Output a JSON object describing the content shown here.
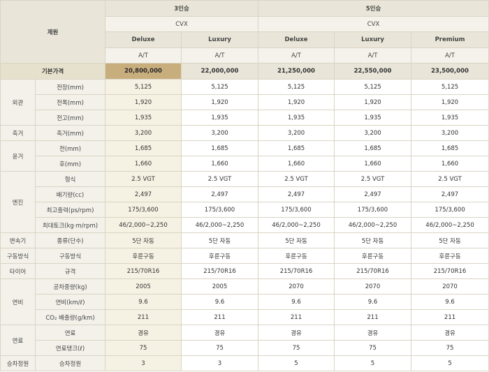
{
  "header": {
    "spec_label": "제원",
    "groups": [
      {
        "label": "3인승",
        "model": "CVX"
      },
      {
        "label": "5인승",
        "model": "CVX"
      }
    ],
    "trims": [
      "Deluxe",
      "Luxury",
      "Deluxe",
      "Luxury",
      "Premium"
    ],
    "transmissions": [
      "A/T",
      "A/T",
      "A/T",
      "A/T",
      "A/T"
    ]
  },
  "base_price": {
    "label": "기본가격",
    "values": [
      "20,800,000",
      "22,000,000",
      "21,250,000",
      "22,550,000",
      "23,500,000"
    ]
  },
  "categories": [
    {
      "name": "외관",
      "rows": [
        {
          "label": "전장(mm)",
          "values": [
            "5,125",
            "5,125",
            "5,125",
            "5,125",
            "5,125"
          ]
        },
        {
          "label": "전폭(mm)",
          "values": [
            "1,920",
            "1,920",
            "1,920",
            "1,920",
            "1,920"
          ]
        },
        {
          "label": "전고(mm)",
          "values": [
            "1,935",
            "1,935",
            "1,935",
            "1,935",
            "1,935"
          ]
        }
      ]
    },
    {
      "name": "축거",
      "rows": [
        {
          "label": "축거(mm)",
          "values": [
            "3,200",
            "3,200",
            "3,200",
            "3,200",
            "3,200"
          ]
        }
      ]
    },
    {
      "name": "윤거",
      "rows": [
        {
          "label": "전(mm)",
          "values": [
            "1,685",
            "1,685",
            "1,685",
            "1,685",
            "1,685"
          ]
        },
        {
          "label": "후(mm)",
          "values": [
            "1,660",
            "1,660",
            "1,660",
            "1,660",
            "1,660"
          ]
        }
      ]
    },
    {
      "name": "엔진",
      "rows": [
        {
          "label": "형식",
          "values": [
            "2.5 VGT",
            "2.5 VGT",
            "2.5 VGT",
            "2.5 VGT",
            "2.5 VGT"
          ]
        },
        {
          "label": "배기량(cc)",
          "values": [
            "2,497",
            "2,497",
            "2,497",
            "2,497",
            "2,497"
          ]
        },
        {
          "label": "최고출력(ps/rpm)",
          "values": [
            "175/3,600",
            "175/3,600",
            "175/3,600",
            "175/3,600",
            "175/3,600"
          ]
        },
        {
          "label": "최대토크(kg·m/rpm)",
          "values": [
            "46/2,000~2,250",
            "46/2,000~2,250",
            "46/2,000~2,250",
            "46/2,000~2,250",
            "46/2,000~2,250"
          ]
        }
      ]
    },
    {
      "name": "변속기",
      "rows": [
        {
          "label": "종류(단수)",
          "values": [
            "5단 자동",
            "5단 자동",
            "5단 자동",
            "5단 자동",
            "5단 자동"
          ]
        }
      ]
    },
    {
      "name": "구동방식",
      "rows": [
        {
          "label": "구동방식",
          "values": [
            "후륜구동",
            "후륜구동",
            "후륜구동",
            "후륜구동",
            "후륜구동"
          ]
        }
      ]
    },
    {
      "name": "타이어",
      "rows": [
        {
          "label": "규격",
          "values": [
            "215/70R16",
            "215/70R16",
            "215/70R16",
            "215/70R16",
            "215/70R16"
          ]
        }
      ]
    },
    {
      "name": "연비",
      "rows": [
        {
          "label": "공차중량(kg)",
          "values": [
            "2005",
            "2005",
            "2070",
            "2070",
            "2070"
          ]
        },
        {
          "label": "연비(km/ℓ)",
          "values": [
            "9.6",
            "9.6",
            "9.6",
            "9.6",
            "9.6"
          ]
        },
        {
          "label": "CO₂ 배출량(g/km)",
          "values": [
            "211",
            "211",
            "211",
            "211",
            "211"
          ]
        }
      ]
    },
    {
      "name": "연료",
      "rows": [
        {
          "label": "연료",
          "values": [
            "경유",
            "경유",
            "경유",
            "경유",
            "경유"
          ]
        },
        {
          "label": "연료탱크(ℓ)",
          "values": [
            "75",
            "75",
            "75",
            "75",
            "75"
          ]
        }
      ]
    },
    {
      "name": "승차정원",
      "rows": [
        {
          "label": "승차정원",
          "values": [
            "3",
            "3",
            "5",
            "5",
            "5"
          ]
        }
      ]
    }
  ]
}
